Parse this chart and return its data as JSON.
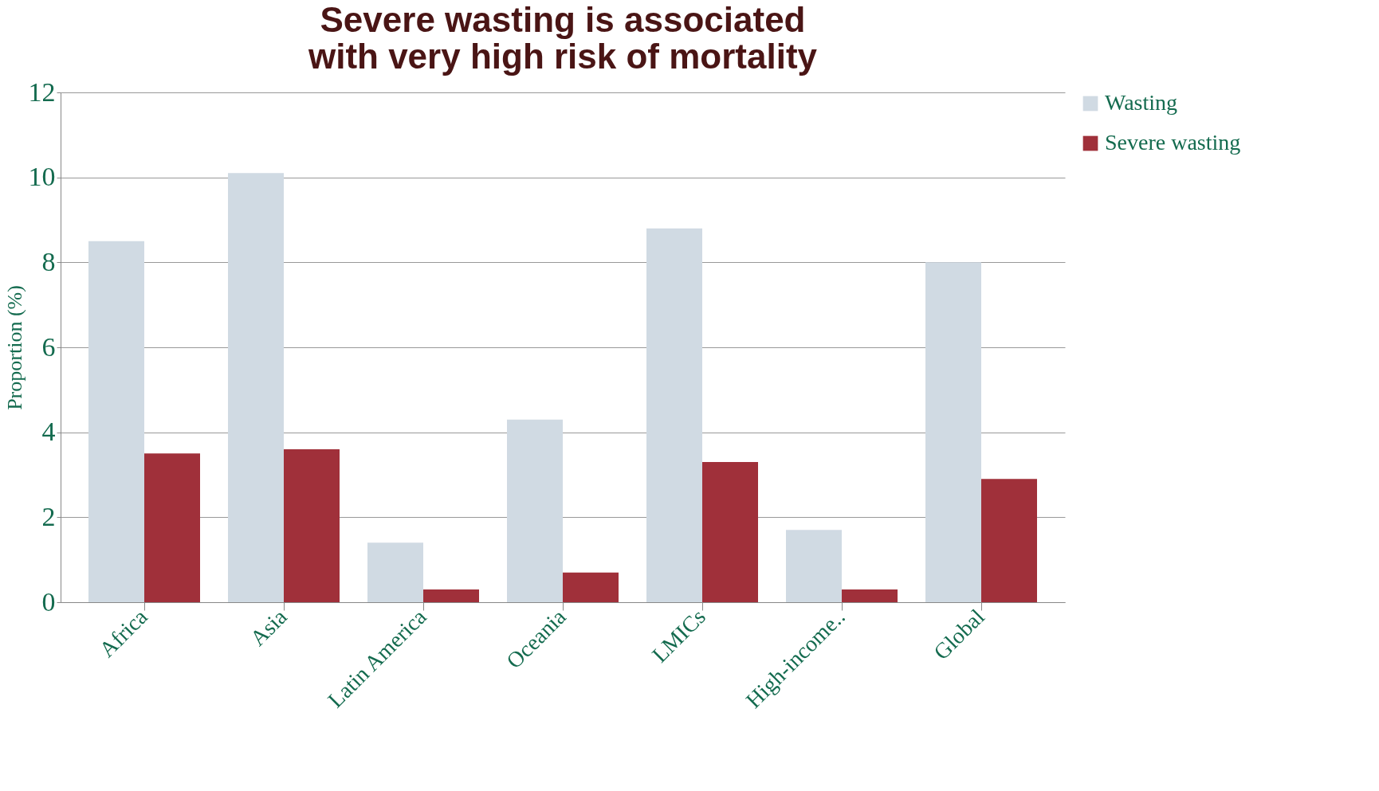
{
  "chart_data": {
    "type": "bar",
    "title": [
      "Severe wasting is associated",
      "with very high risk of mortality"
    ],
    "ylabel": "Proportion (%)",
    "categories": [
      "Africa",
      "Asia",
      "Latin America",
      "Oceania",
      "LMICs",
      "High-income..",
      "Global"
    ],
    "series": [
      {
        "name": "Wasting",
        "color": "#d0dae3",
        "values": [
          8.5,
          10.1,
          1.4,
          4.3,
          8.8,
          1.7,
          8.0
        ]
      },
      {
        "name": "Severe wasting",
        "color": "#a0303a",
        "values": [
          3.5,
          3.6,
          0.3,
          0.7,
          3.3,
          0.3,
          2.9
        ]
      }
    ],
    "ylim": [
      0,
      12
    ],
    "yticks": [
      0,
      2,
      4,
      6,
      8,
      10,
      12
    ],
    "grid": "y",
    "legend": "right"
  }
}
